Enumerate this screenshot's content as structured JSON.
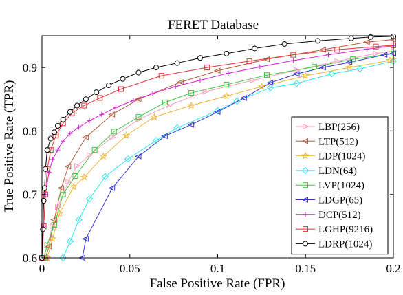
{
  "chart_data": {
    "type": "line",
    "title": "FERET Database",
    "xlabel": "False Positive Rate (FPR)",
    "ylabel": "True Positive Rate (TPR)",
    "xlim": [
      0,
      0.2
    ],
    "ylim": [
      0.6,
      0.95
    ],
    "xticks": [
      0,
      0.05,
      0.1,
      0.15,
      0.2
    ],
    "xtick_labels": [
      "0",
      "0.05",
      "0.1",
      "0.15",
      "0.2"
    ],
    "yticks": [
      0.6,
      0.7,
      0.8,
      0.9
    ],
    "ytick_labels": [
      "0.6",
      "0.7",
      "0.8",
      "0.9"
    ],
    "grid": false,
    "legend_position": "bottom-right",
    "series": [
      {
        "name": "LBP(256)",
        "color": "#ff9fbf",
        "marker": "triangle-right",
        "x": [
          0.001,
          0.003,
          0.006,
          0.009,
          0.015,
          0.02,
          0.027,
          0.04,
          0.055,
          0.072,
          0.093,
          0.12,
          0.145,
          0.168,
          0.19,
          0.2
        ],
        "y": [
          0.6,
          0.62,
          0.65,
          0.68,
          0.72,
          0.745,
          0.762,
          0.79,
          0.818,
          0.84,
          0.862,
          0.88,
          0.896,
          0.91,
          0.922,
          0.926
        ]
      },
      {
        "name": "LTP(512)",
        "color": "#b35a3c",
        "marker": "triangle-left",
        "x": [
          0.002,
          0.004,
          0.007,
          0.011,
          0.015,
          0.025,
          0.04,
          0.055,
          0.079,
          0.1,
          0.128,
          0.16,
          0.185,
          0.2
        ],
        "y": [
          0.6,
          0.618,
          0.66,
          0.71,
          0.744,
          0.79,
          0.826,
          0.85,
          0.877,
          0.895,
          0.913,
          0.928,
          0.94,
          0.944
        ]
      },
      {
        "name": "LDP(1024)",
        "color": "#f0b43c",
        "marker": "star",
        "x": [
          0.003,
          0.006,
          0.01,
          0.018,
          0.024,
          0.035,
          0.048,
          0.064,
          0.085,
          0.105,
          0.125,
          0.15,
          0.175,
          0.198,
          0.2
        ],
        "y": [
          0.6,
          0.63,
          0.67,
          0.712,
          0.727,
          0.76,
          0.793,
          0.822,
          0.84,
          0.855,
          0.87,
          0.887,
          0.9,
          0.911,
          0.913
        ]
      },
      {
        "name": "LDN(64)",
        "color": "#33e5f0",
        "marker": "diamond",
        "x": [
          0.012,
          0.016,
          0.021,
          0.027,
          0.036,
          0.049,
          0.065,
          0.077,
          0.1,
          0.111,
          0.13,
          0.145,
          0.165,
          0.181,
          0.2
        ],
        "y": [
          0.6,
          0.626,
          0.66,
          0.693,
          0.728,
          0.756,
          0.785,
          0.805,
          0.832,
          0.847,
          0.868,
          0.875,
          0.89,
          0.898,
          0.91
        ]
      },
      {
        "name": "LVP(1024)",
        "color": "#3cc83c",
        "marker": "square",
        "x": [
          0.001,
          0.003,
          0.007,
          0.012,
          0.019,
          0.03,
          0.041,
          0.055,
          0.07,
          0.085,
          0.105,
          0.128,
          0.155,
          0.177,
          0.2
        ],
        "y": [
          0.6,
          0.62,
          0.652,
          0.7,
          0.729,
          0.77,
          0.799,
          0.822,
          0.845,
          0.86,
          0.873,
          0.888,
          0.901,
          0.913,
          0.922
        ]
      },
      {
        "name": "LDGP(65)",
        "color": "#3232d2",
        "marker": "triangle-left",
        "x": [
          0.023,
          0.025,
          0.04,
          0.055,
          0.07,
          0.085,
          0.1,
          0.115,
          0.13,
          0.145,
          0.16,
          0.175,
          0.195,
          0.2
        ],
        "y": [
          0.6,
          0.63,
          0.71,
          0.76,
          0.792,
          0.81,
          0.83,
          0.852,
          0.876,
          0.89,
          0.9,
          0.908,
          0.92,
          0.922
        ]
      },
      {
        "name": "DCP(512)",
        "color": "#d21ed7",
        "marker": "plus",
        "x": [
          0.0,
          0.001,
          0.002,
          0.004,
          0.006,
          0.009,
          0.012,
          0.016,
          0.021,
          0.027,
          0.034,
          0.042,
          0.052,
          0.063,
          0.076,
          0.09,
          0.106,
          0.124,
          0.143,
          0.163,
          0.185,
          0.2
        ],
        "y": [
          0.6,
          0.65,
          0.7,
          0.735,
          0.755,
          0.77,
          0.784,
          0.796,
          0.806,
          0.816,
          0.826,
          0.837,
          0.848,
          0.859,
          0.87,
          0.88,
          0.891,
          0.901,
          0.911,
          0.92,
          0.929,
          0.934
        ]
      },
      {
        "name": "LGHP(9216)",
        "color": "#e63232",
        "marker": "square",
        "x": [
          0.0,
          0.001,
          0.002,
          0.003,
          0.005,
          0.008,
          0.012,
          0.017,
          0.024,
          0.033,
          0.045,
          0.068,
          0.094,
          0.118,
          0.143,
          0.168,
          0.19,
          0.2
        ],
        "y": [
          0.6,
          0.65,
          0.7,
          0.74,
          0.77,
          0.793,
          0.812,
          0.828,
          0.84,
          0.852,
          0.866,
          0.887,
          0.9,
          0.91,
          0.92,
          0.928,
          0.933,
          0.935
        ]
      },
      {
        "name": "LDRP(1024)",
        "color": "#000000",
        "marker": "circle",
        "x": [
          0.0,
          0.0005,
          0.001,
          0.0015,
          0.002,
          0.003,
          0.005,
          0.007,
          0.009,
          0.012,
          0.016,
          0.02,
          0.025,
          0.031,
          0.038,
          0.046,
          0.055,
          0.065,
          0.077,
          0.09,
          0.105,
          0.121,
          0.138,
          0.157,
          0.176,
          0.187,
          0.2
        ],
        "y": [
          0.6,
          0.645,
          0.69,
          0.71,
          0.74,
          0.77,
          0.788,
          0.798,
          0.808,
          0.818,
          0.83,
          0.84,
          0.85,
          0.861,
          0.872,
          0.882,
          0.892,
          0.9,
          0.907,
          0.915,
          0.922,
          0.93,
          0.937,
          0.942,
          0.946,
          0.948,
          0.949
        ]
      }
    ]
  }
}
